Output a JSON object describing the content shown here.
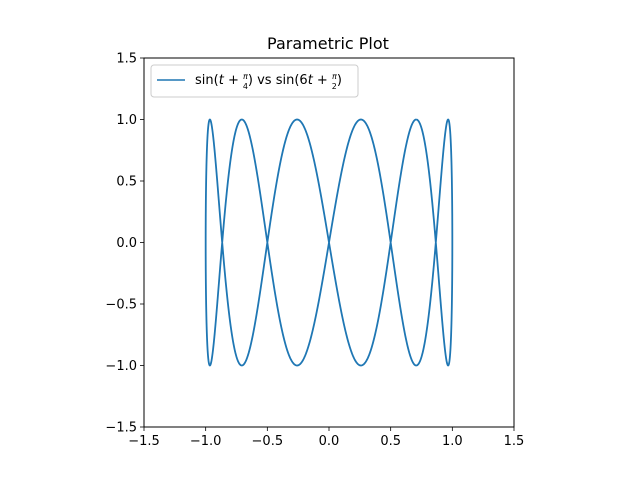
{
  "chart_data": {
    "type": "line",
    "title": "Parametric Plot",
    "xlabel": "",
    "ylabel": "",
    "xlim": [
      -1.5,
      1.5
    ],
    "ylim": [
      -1.5,
      1.5
    ],
    "x_ticks": [
      -1.5,
      -1.0,
      -0.5,
      0.0,
      0.5,
      1.0,
      1.5
    ],
    "x_tick_labels": [
      "−1.5",
      "−1.0",
      "−0.5",
      "0.0",
      "0.5",
      "1.0",
      "1.5"
    ],
    "y_ticks": [
      -1.5,
      -1.0,
      -0.5,
      0.0,
      0.5,
      1.0,
      1.5
    ],
    "y_tick_labels": [
      "−1.5",
      "−1.0",
      "−0.5",
      "0.0",
      "0.5",
      "1.0",
      "1.5"
    ],
    "grid": false,
    "legend_position": "upper-left",
    "series": [
      {
        "name": "sin(t + π/4) vs sin(6t + π/2)",
        "legend": {
          "part1": "sin(",
          "var1": "t",
          "plus1": " + ",
          "frac1_num": "π",
          "frac1_den": "4",
          "part2": ") vs sin(6",
          "var2": "t",
          "plus2": " + ",
          "frac2_num": "π",
          "frac2_den": "2",
          "part3": ")"
        },
        "color": "#1f77b4",
        "x_expr": "sin(t + π/4)",
        "y_expr": "sin(6t + π/2)",
        "t_range": [
          0,
          6.283185307179586
        ],
        "samples": 1000
      }
    ]
  }
}
